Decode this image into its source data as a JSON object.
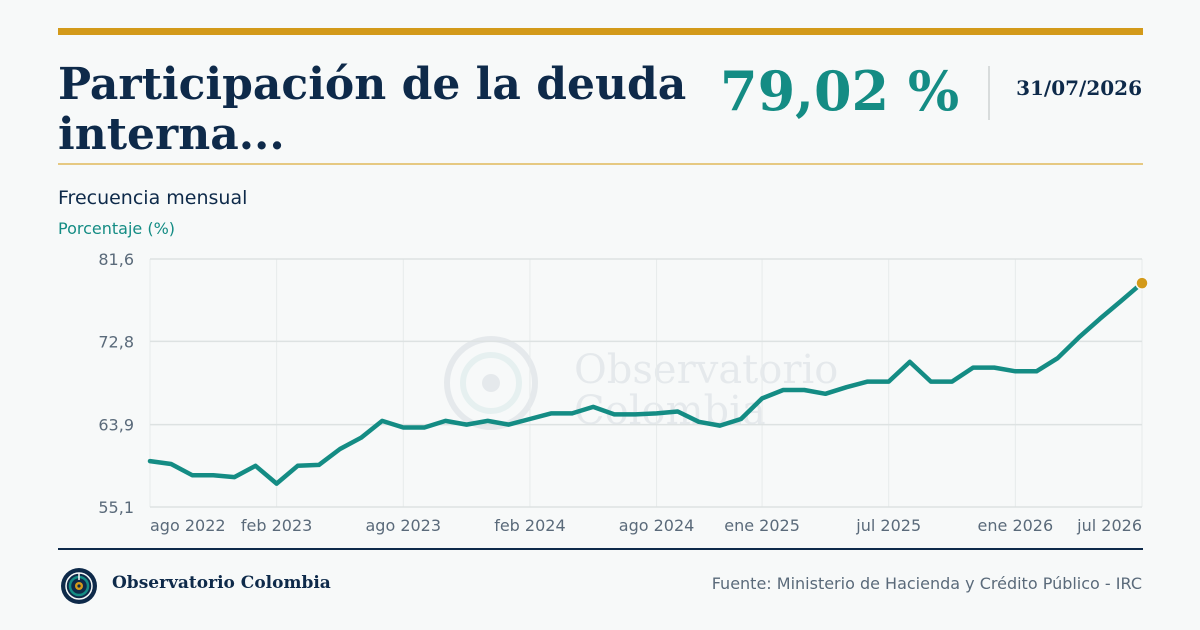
{
  "header": {
    "title": "Participación de la deuda interna...",
    "value": "79,02 %",
    "date": "31/07/2026"
  },
  "subtitle": {
    "frequency": "Frecuencia mensual",
    "unit": "Porcentaje (%)"
  },
  "watermark": {
    "line1": "Observatorio",
    "line2": "Colombia"
  },
  "footer": {
    "brand": "Observatorio Colombia",
    "source": "Fuente: Ministerio de Hacienda y Crédito Público - IRC"
  },
  "colors": {
    "accent": "#d39a1a",
    "line": "#148c84",
    "navy": "#0e2a4a",
    "last_point": "#d39a1a"
  },
  "chart_data": {
    "type": "line",
    "title": "",
    "xlabel": "",
    "ylabel": "Porcentaje (%)",
    "ylim": [
      55.1,
      81.6
    ],
    "yticks": [
      {
        "value": 55.1,
        "label": "55,1"
      },
      {
        "value": 63.9,
        "label": "63,9"
      },
      {
        "value": 72.8,
        "label": "72,8"
      },
      {
        "value": 81.6,
        "label": "81,6"
      }
    ],
    "xticks": [
      {
        "x": "2022-08",
        "label": "ago 2022"
      },
      {
        "x": "2023-02",
        "label": "feb 2023"
      },
      {
        "x": "2023-08",
        "label": "ago 2023"
      },
      {
        "x": "2024-02",
        "label": "feb 2024"
      },
      {
        "x": "2024-08",
        "label": "ago 2024"
      },
      {
        "x": "2025-01",
        "label": "ene 2025"
      },
      {
        "x": "2025-07",
        "label": "jul 2025"
      },
      {
        "x": "2026-01",
        "label": "ene 2026"
      },
      {
        "x": "2026-07",
        "label": "jul 2026"
      }
    ],
    "grid": true,
    "series": [
      {
        "x": [
          "2022-08",
          "2022-09",
          "2022-10",
          "2022-11",
          "2022-12",
          "2023-01",
          "2023-02",
          "2023-03",
          "2023-04",
          "2023-05",
          "2023-06",
          "2023-07",
          "2023-08",
          "2023-09",
          "2023-10",
          "2023-11",
          "2023-12",
          "2024-01",
          "2024-02",
          "2024-03",
          "2024-04",
          "2024-05",
          "2024-06",
          "2024-07",
          "2024-08",
          "2024-09",
          "2024-10",
          "2024-11",
          "2024-12",
          "2025-01",
          "2025-02",
          "2025-03",
          "2025-04",
          "2025-05",
          "2025-06",
          "2025-07",
          "2025-08",
          "2025-09",
          "2025-10",
          "2025-11",
          "2025-12",
          "2026-01",
          "2026-02",
          "2026-03",
          "2026-04",
          "2026-05",
          "2026-06",
          "2026-07"
        ],
        "values": [
          60.0,
          59.7,
          58.5,
          58.5,
          58.3,
          59.5,
          57.6,
          59.5,
          59.6,
          61.3,
          62.5,
          64.3,
          63.6,
          63.6,
          64.3,
          63.9,
          64.3,
          63.9,
          64.5,
          65.1,
          65.1,
          65.8,
          65.0,
          65.0,
          65.1,
          65.3,
          64.2,
          63.8,
          64.5,
          66.7,
          67.6,
          67.6,
          67.2,
          67.9,
          68.5,
          68.5,
          70.6,
          68.5,
          68.5,
          70.0,
          70.0,
          69.6,
          69.6,
          71.0,
          73.2,
          75.2,
          77.1,
          79.02
        ]
      }
    ]
  }
}
